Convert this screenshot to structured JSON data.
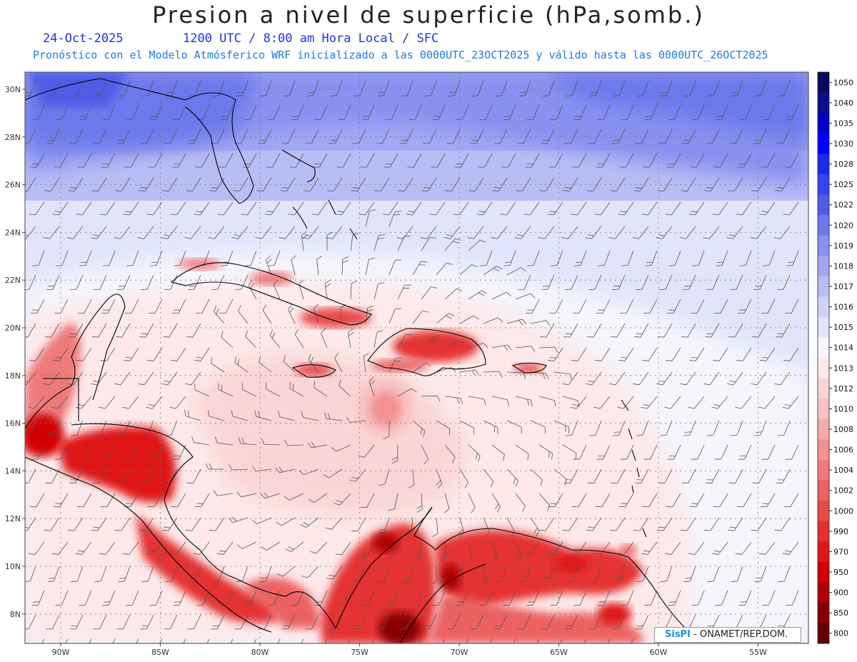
{
  "header": {
    "title": "Presion a nivel de superficie (hPa,somb.)",
    "date": "24-Oct-2025",
    "time_info": "1200 UTC / 8:00 am Hora Local / SFC",
    "model_info": "Pronóstico con el Modelo Atmósferico WRF inicializado a las 0000UTC_23OCT2025 y válido hasta las  0000UTC_26OCT2025"
  },
  "map": {
    "lat_labels": [
      "30N",
      "28N",
      "26N",
      "24N",
      "22N",
      "20N",
      "18N",
      "16N",
      "14N",
      "12N",
      "10N",
      "8N"
    ],
    "lon_labels": [
      "90W",
      "85W",
      "80W",
      "75W",
      "70W",
      "65W",
      "60W",
      "55W"
    ]
  },
  "colorbar": {
    "levels": [
      "1050",
      "1040",
      "1035",
      "1030",
      "1028",
      "1025",
      "1022",
      "1020",
      "1019",
      "1018",
      "1017",
      "1016",
      "1015",
      "1014",
      "1013",
      "1012",
      "1010",
      "1008",
      "1006",
      "1004",
      "1002",
      "1000",
      "990",
      "970",
      "950",
      "900",
      "850",
      "800"
    ],
    "colors": [
      "#0a0a5c",
      "#0d0d8a",
      "#0000c8",
      "#0000ff",
      "#1a2cf0",
      "#3344ee",
      "#4f5ce8",
      "#6c78ec",
      "#8890f0",
      "#a2a8f2",
      "#b9bdf5",
      "#cfd2f8",
      "#e2e4fb",
      "#f5f5fe",
      "#fde9e9",
      "#fbd5d5",
      "#f8c0c0",
      "#f5aaaa",
      "#f29292",
      "#ef7a7a",
      "#ec6262",
      "#e84a4a",
      "#e53030",
      "#e01818",
      "#d20000",
      "#b00000",
      "#8a0000",
      "#600000"
    ]
  },
  "credit": {
    "logo": "SisPI",
    "text": "- ONAMET/REP.DOM."
  }
}
